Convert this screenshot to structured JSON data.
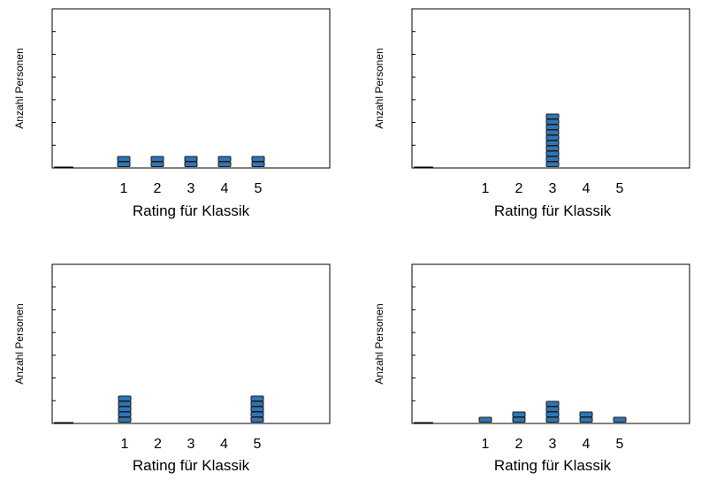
{
  "colors": {
    "dot_fill": "#2e75b6",
    "dot_stroke": "#1a1a1a",
    "axis": "#000000"
  },
  "chart_data": [
    {
      "type": "dotplot",
      "categories": [
        1,
        2,
        3,
        4,
        5
      ],
      "values": [
        2,
        2,
        2,
        2,
        2
      ],
      "xlabel": "Rating für Klassik",
      "ylabel": "Anzahl Personen",
      "ylim": [
        0,
        14
      ],
      "ytick_count": 7,
      "grid": false
    },
    {
      "type": "dotplot",
      "categories": [
        1,
        2,
        3,
        4,
        5
      ],
      "values": [
        0,
        0,
        10,
        0,
        0
      ],
      "xlabel": "Rating für Klassik",
      "ylabel": "Anzahl Personen",
      "ylim": [
        0,
        14
      ],
      "ytick_count": 7,
      "grid": false
    },
    {
      "type": "dotplot",
      "categories": [
        1,
        2,
        3,
        4,
        5
      ],
      "values": [
        5,
        0,
        0,
        0,
        5
      ],
      "xlabel": "Rating für Klassik",
      "ylabel": "Anzahl Personen",
      "ylim": [
        0,
        14
      ],
      "ytick_count": 7,
      "grid": false
    },
    {
      "type": "dotplot",
      "categories": [
        1,
        2,
        3,
        4,
        5
      ],
      "values": [
        1,
        2,
        4,
        2,
        1
      ],
      "xlabel": "Rating für Klassik",
      "ylabel": "Anzahl Personen",
      "ylim": [
        0,
        14
      ],
      "ytick_count": 7,
      "grid": false
    }
  ]
}
